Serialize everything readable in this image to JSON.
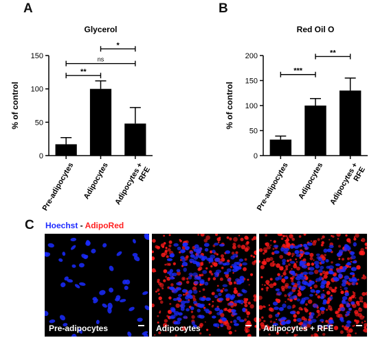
{
  "panels": {
    "a": "A",
    "b": "B",
    "c": "C"
  },
  "chart_data": [
    {
      "type": "bar",
      "title": "Glycerol",
      "ylabel": "% of control",
      "ylim": [
        0,
        150
      ],
      "yticks": [
        0,
        50,
        100,
        150
      ],
      "categories": [
        "Pre-adipocytes",
        "Adipocytes",
        "Adipocytes +\nRFE"
      ],
      "values": [
        17,
        100,
        48
      ],
      "errors": [
        10,
        12,
        24
      ],
      "significance": [
        {
          "from": 0,
          "to": 1,
          "label": "**",
          "y": 120
        },
        {
          "from": 0,
          "to": 2,
          "label": "ns",
          "y": 138
        },
        {
          "from": 1,
          "to": 2,
          "label": "*",
          "y": 160
        }
      ]
    },
    {
      "type": "bar",
      "title": "Red Oil O",
      "ylabel": "% of control",
      "ylim": [
        0,
        200
      ],
      "yticks": [
        0,
        50,
        100,
        150,
        200
      ],
      "categories": [
        "Pre-adipocytes",
        "Adipocytes",
        "Adipocytes +\nRFE"
      ],
      "values": [
        32,
        100,
        130
      ],
      "errors": [
        7,
        14,
        25
      ],
      "significance": [
        {
          "from": 0,
          "to": 1,
          "label": "***",
          "y": 162
        },
        {
          "from": 1,
          "to": 2,
          "label": "**",
          "y": 198
        }
      ]
    }
  ],
  "micrographs": {
    "legend_hoechst": "Hoechst",
    "legend_sep": " - ",
    "legend_adipored": "AdipoRed",
    "images": [
      {
        "label": "Pre-adipocytes",
        "density": "sparse",
        "red": 0
      },
      {
        "label": "Adipocytes",
        "density": "dense",
        "red": 1
      },
      {
        "label": "Adipocytes + RFE",
        "density": "dense",
        "red": 2
      }
    ]
  },
  "colors": {
    "bar": "#000000",
    "nucleus": "#1a2bff",
    "lipid": "#ff1a1a",
    "background": "#000000"
  }
}
